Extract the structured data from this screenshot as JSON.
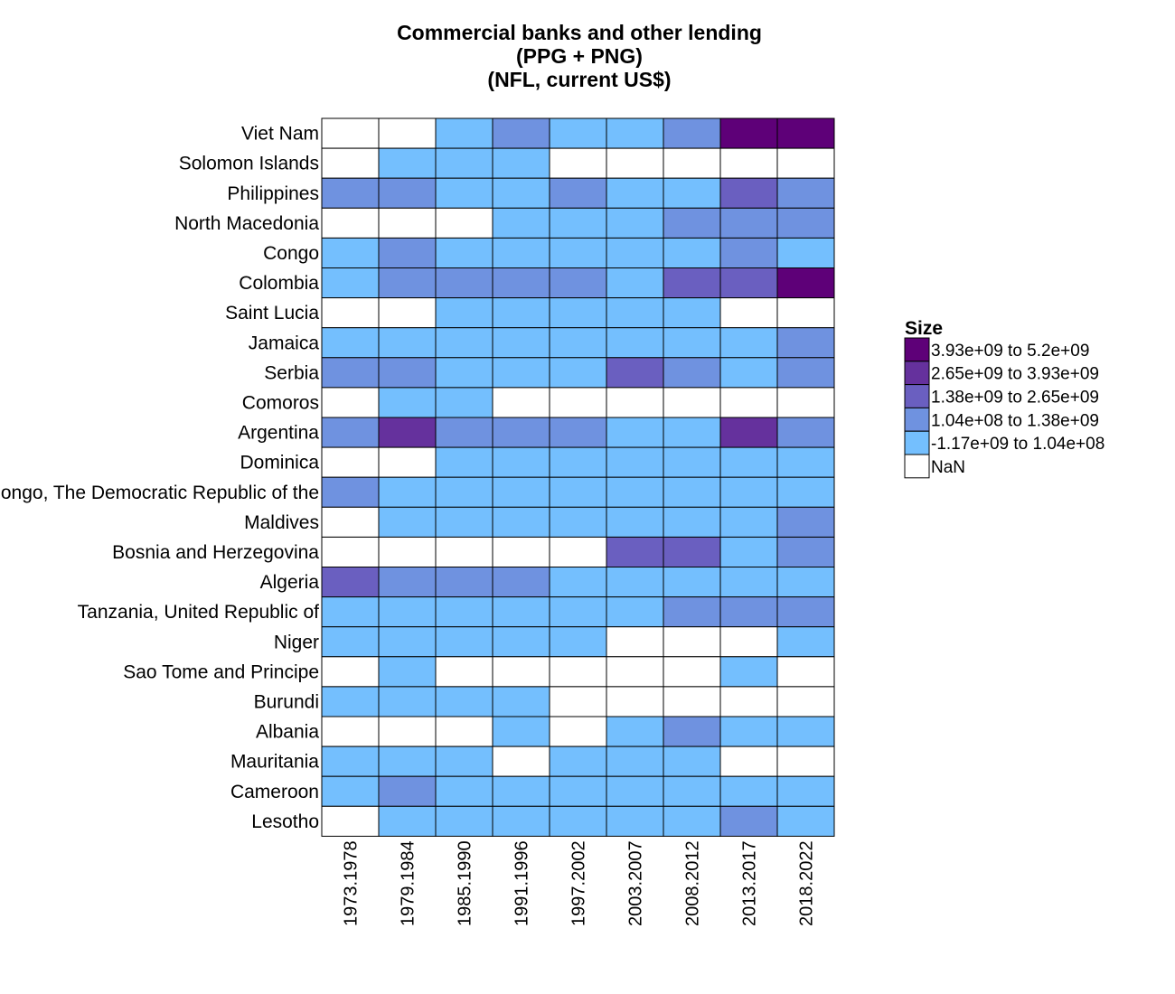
{
  "chart_data": {
    "type": "heatmap",
    "title_lines": [
      "Commercial banks and other lending",
      "(PPG + PNG)",
      "(NFL, current US$)"
    ],
    "x_categories": [
      "1973.1978",
      "1979.1984",
      "1985.1990",
      "1991.1996",
      "1997.2002",
      "2003.2007",
      "2008.2012",
      "2013.2017",
      "2018.2022"
    ],
    "y_categories": [
      "Viet Nam",
      "Solomon Islands",
      "Philippines",
      "North Macedonia",
      "Congo",
      "Colombia",
      "Saint Lucia",
      "Jamaica",
      "Serbia",
      "Comoros",
      "Argentina",
      "Dominica",
      "Congo, The Democratic Republic of the",
      "Maldives",
      "Bosnia and Herzegovina",
      "Algeria",
      "Tanzania, United Republic of",
      "Niger",
      "Sao Tome and Principe",
      "Burundi",
      "Albania",
      "Mauritania",
      "Cameroon",
      "Lesotho"
    ],
    "bin_index_note_levels": "0=NaN, 1=-1.17e+09 to 1.04e+08, 2=1.04e+08 to 1.38e+09, 3=1.38e+09 to 2.65e+09, 4=2.65e+09 to 3.93e+09, 5=3.93e+09 to 5.2e+09",
    "cells": [
      [
        0,
        0,
        1,
        2,
        1,
        1,
        2,
        5,
        5
      ],
      [
        0,
        1,
        1,
        1,
        0,
        0,
        0,
        0,
        0
      ],
      [
        2,
        2,
        1,
        1,
        2,
        1,
        1,
        3,
        2
      ],
      [
        0,
        0,
        0,
        1,
        1,
        1,
        2,
        2,
        2
      ],
      [
        1,
        2,
        1,
        1,
        1,
        1,
        1,
        2,
        1
      ],
      [
        1,
        2,
        2,
        2,
        2,
        1,
        3,
        3,
        5
      ],
      [
        0,
        0,
        1,
        1,
        1,
        1,
        1,
        0,
        0
      ],
      [
        1,
        1,
        1,
        1,
        1,
        1,
        1,
        1,
        2
      ],
      [
        2,
        2,
        1,
        1,
        1,
        3,
        2,
        1,
        2
      ],
      [
        0,
        1,
        1,
        0,
        0,
        0,
        0,
        0,
        0
      ],
      [
        2,
        4,
        2,
        2,
        2,
        1,
        1,
        4,
        2
      ],
      [
        0,
        0,
        1,
        1,
        1,
        1,
        1,
        1,
        1
      ],
      [
        2,
        1,
        1,
        1,
        1,
        1,
        1,
        1,
        1
      ],
      [
        0,
        1,
        1,
        1,
        1,
        1,
        1,
        1,
        2
      ],
      [
        0,
        0,
        0,
        0,
        0,
        3,
        3,
        1,
        2
      ],
      [
        3,
        2,
        2,
        2,
        1,
        1,
        1,
        1,
        1
      ],
      [
        1,
        1,
        1,
        1,
        1,
        1,
        2,
        2,
        2
      ],
      [
        1,
        1,
        1,
        1,
        1,
        0,
        0,
        0,
        1
      ],
      [
        0,
        1,
        0,
        0,
        0,
        0,
        0,
        1,
        0
      ],
      [
        1,
        1,
        1,
        1,
        0,
        0,
        0,
        0,
        0
      ],
      [
        0,
        0,
        0,
        1,
        0,
        1,
        2,
        1,
        1
      ],
      [
        1,
        1,
        1,
        0,
        1,
        1,
        1,
        0,
        0
      ],
      [
        1,
        2,
        1,
        1,
        1,
        1,
        1,
        1,
        1
      ],
      [
        0,
        1,
        1,
        1,
        1,
        1,
        1,
        2,
        1
      ]
    ],
    "legend": {
      "title": "Size",
      "placement": "right",
      "items": [
        {
          "label": "3.93e+09 to 5.2e+09",
          "color": "#5e0078"
        },
        {
          "label": "2.65e+09 to 3.93e+09",
          "color": "#65319d"
        },
        {
          "label": "1.38e+09 to 2.65e+09",
          "color": "#6a5fc0"
        },
        {
          "label": "1.04e+08 to 1.38e+09",
          "color": "#6f92e0"
        },
        {
          "label": "-1.17e+09 to 1.04e+08",
          "color": "#74bffe"
        },
        {
          "label": "NaN",
          "color": "#ffffff"
        }
      ]
    },
    "level_colors": [
      "#ffffff",
      "#74bffe",
      "#6f92e0",
      "#6a5fc0",
      "#65319d",
      "#5e0078"
    ]
  }
}
